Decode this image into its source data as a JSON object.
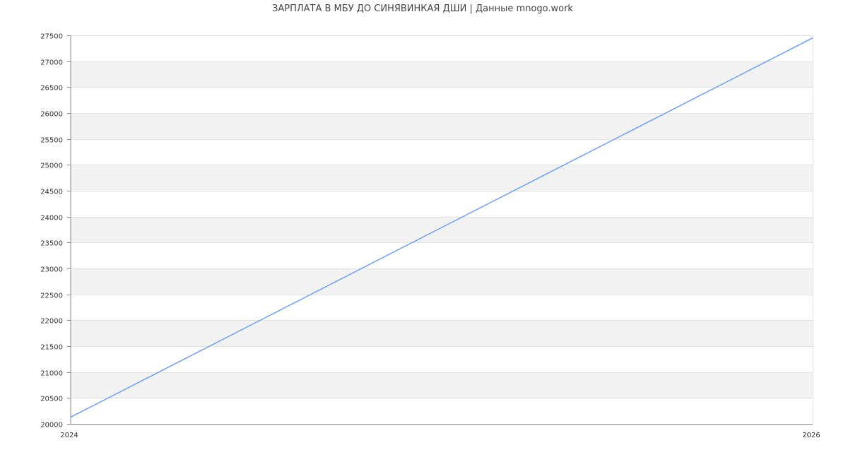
{
  "chart_data": {
    "type": "line",
    "title": "ЗАРПЛАТА В МБУ ДО СИНЯВИНКАЯ ДШИ | Данные mnogo.work",
    "xlabel": "",
    "ylabel": "",
    "x": [
      2024,
      2026
    ],
    "x_ticks": [
      "2024",
      "2026"
    ],
    "xlim": [
      2024,
      2026
    ],
    "ylim": [
      20000,
      27500
    ],
    "y_ticks": [
      20000,
      20500,
      21000,
      21500,
      22000,
      22500,
      23000,
      23500,
      24000,
      24500,
      25000,
      25500,
      26000,
      26500,
      27000,
      27500
    ],
    "series": [
      {
        "values": [
          20130,
          27450
        ],
        "color": "#6f9ff5"
      }
    ],
    "grid": true,
    "band_color": "#f2f2f2",
    "legend": "none"
  }
}
